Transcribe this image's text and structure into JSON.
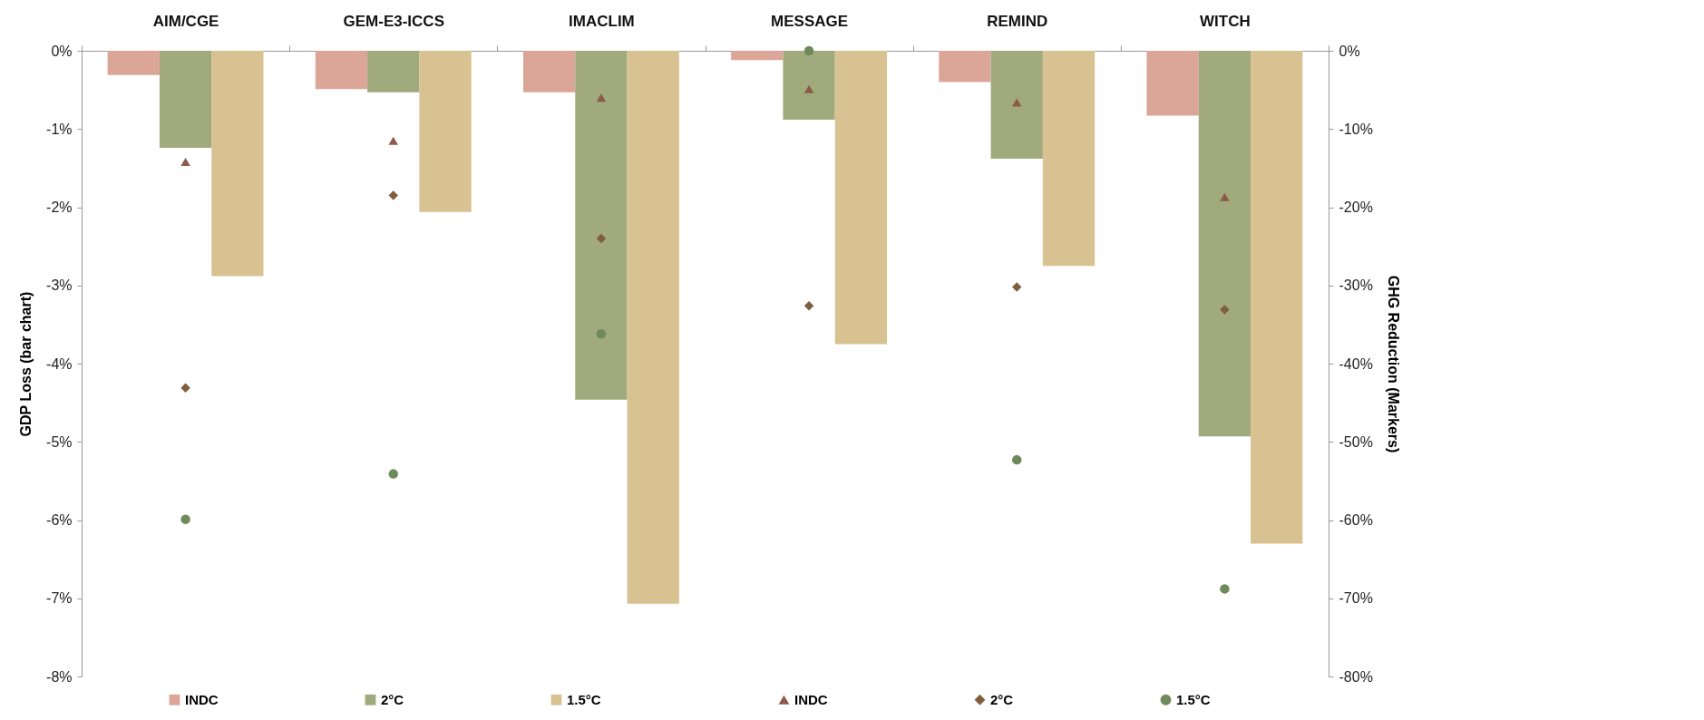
{
  "chart_data": {
    "type": "bar",
    "categories": [
      "AIM/CGE",
      "GEM-E3-ICCS",
      "IMACLIM",
      "MESSAGE",
      "REMIND",
      "WITCH"
    ],
    "ylabel": "GDP Loss (bar chart)",
    "y2label": "GHG Reduction (Markers)",
    "ylim": [
      -8,
      0
    ],
    "yticks": [
      {
        "value": -8,
        "label": "-8%"
      },
      {
        "value": -7,
        "label": "-7%"
      },
      {
        "value": -6,
        "label": "-6%"
      },
      {
        "value": -5,
        "label": "-5%"
      },
      {
        "value": -4,
        "label": "-4%"
      },
      {
        "value": -3,
        "label": "-3%"
      },
      {
        "value": -2,
        "label": "-2%"
      },
      {
        "value": -1,
        "label": "-1%"
      },
      {
        "value": 0,
        "label": "0%"
      }
    ],
    "y2lim": [
      -80,
      0
    ],
    "y2ticks": [
      {
        "value": -80,
        "label": "-80%"
      },
      {
        "value": -70,
        "label": "-70%"
      },
      {
        "value": -60,
        "label": "-60%"
      },
      {
        "value": -50,
        "label": "-50%"
      },
      {
        "value": -40,
        "label": "-40%"
      },
      {
        "value": -30,
        "label": "-30%"
      },
      {
        "value": -20,
        "label": "-20%"
      },
      {
        "value": -10,
        "label": "-10%"
      },
      {
        "value": 0,
        "label": "0%"
      }
    ],
    "grid": false,
    "legend": "bottom",
    "series": [
      {
        "name": "INDC",
        "color": "#dba598",
        "values": [
          -0.31,
          -0.49,
          -0.53,
          -0.12,
          -0.4,
          -0.83
        ]
      },
      {
        "name": "2°C",
        "color": "#a0aa7c",
        "values": [
          -1.24,
          -0.53,
          -4.46,
          -0.88,
          -1.38,
          -4.93
        ]
      },
      {
        "name": "1.5°C",
        "color": "#d9c291",
        "values": [
          -2.88,
          -2.06,
          -7.07,
          -3.75,
          -2.75,
          -6.3
        ]
      },
      {
        "name": "INDC",
        "type": "scatter",
        "axis": "y2",
        "marker": "triangle",
        "color": "#8b5a48",
        "values": [
          -14.2,
          -11.5,
          -6,
          -4.9,
          -6.6,
          -18.7
        ]
      },
      {
        "name": "2°C",
        "type": "scatter",
        "axis": "y2",
        "marker": "diamond",
        "color": "#7f5e3c",
        "values": [
          -43.1,
          -18.5,
          -24,
          -32.6,
          -30.2,
          -33.1
        ]
      },
      {
        "name": "1.5°C",
        "type": "scatter",
        "axis": "y2",
        "marker": "circle",
        "color": "#6f8a5a",
        "values": [
          -59.9,
          -54.1,
          -36.2,
          0,
          -52.3,
          -68.8
        ]
      }
    ]
  }
}
